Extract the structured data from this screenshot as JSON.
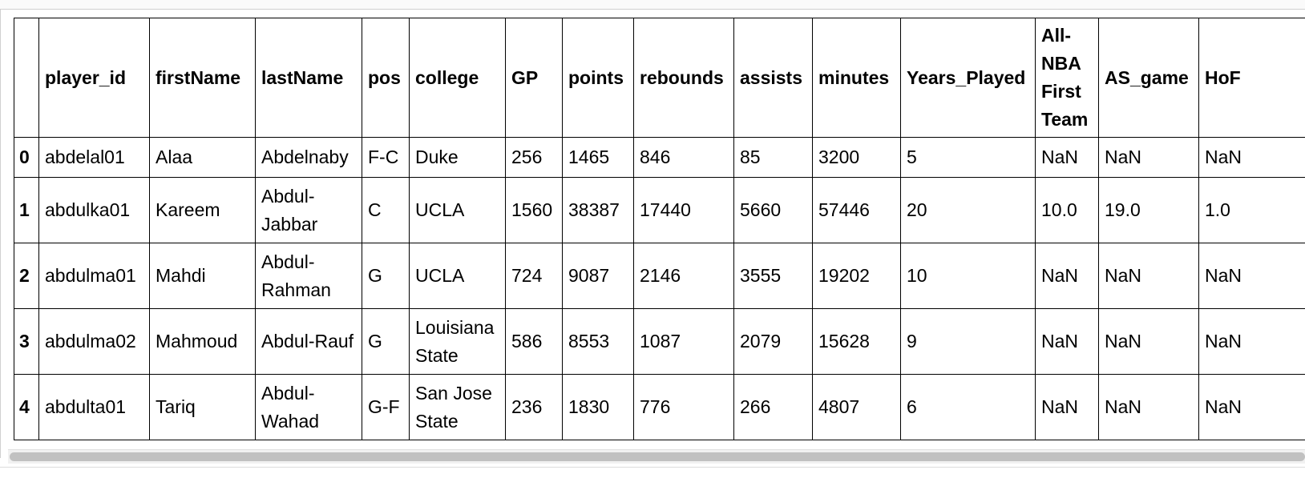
{
  "table": {
    "columns": [
      "",
      "player_id",
      "firstName",
      "lastName",
      "pos",
      "college",
      "GP",
      "points",
      "rebounds",
      "assists",
      "minutes",
      "Years_Played",
      "All-NBA First Team",
      "AS_game",
      "HoF"
    ],
    "rows": [
      {
        "index": "0",
        "cells": [
          "abdelal01",
          "Alaa",
          "Abdelnaby",
          "F-C",
          "Duke",
          "256",
          "1465",
          "846",
          "85",
          "3200",
          "5",
          "NaN",
          "NaN",
          "NaN"
        ]
      },
      {
        "index": "1",
        "cells": [
          "abdulka01",
          "Kareem",
          "Abdul-Jabbar",
          "C",
          "UCLA",
          "1560",
          "38387",
          "17440",
          "5660",
          "57446",
          "20",
          "10.0",
          "19.0",
          "1.0"
        ]
      },
      {
        "index": "2",
        "cells": [
          "abdulma01",
          "Mahdi",
          "Abdul-Rahman",
          "G",
          "UCLA",
          "724",
          "9087",
          "2146",
          "3555",
          "19202",
          "10",
          "NaN",
          "NaN",
          "NaN"
        ]
      },
      {
        "index": "3",
        "cells": [
          "abdulma02",
          "Mahmoud",
          "Abdul-Rauf",
          "G",
          "Louisiana State",
          "586",
          "8553",
          "1087",
          "2079",
          "15628",
          "9",
          "NaN",
          "NaN",
          "NaN"
        ]
      },
      {
        "index": "4",
        "cells": [
          "abdulta01",
          "Tariq",
          "Abdul-Wahad",
          "G-F",
          "San Jose State",
          "236",
          "1830",
          "776",
          "266",
          "4807",
          "6",
          "NaN",
          "NaN",
          "NaN"
        ]
      }
    ]
  },
  "colors": {
    "border": "#000000",
    "scroll_thumb": "#c1c1c1",
    "scroll_track": "#f1f1f1"
  }
}
